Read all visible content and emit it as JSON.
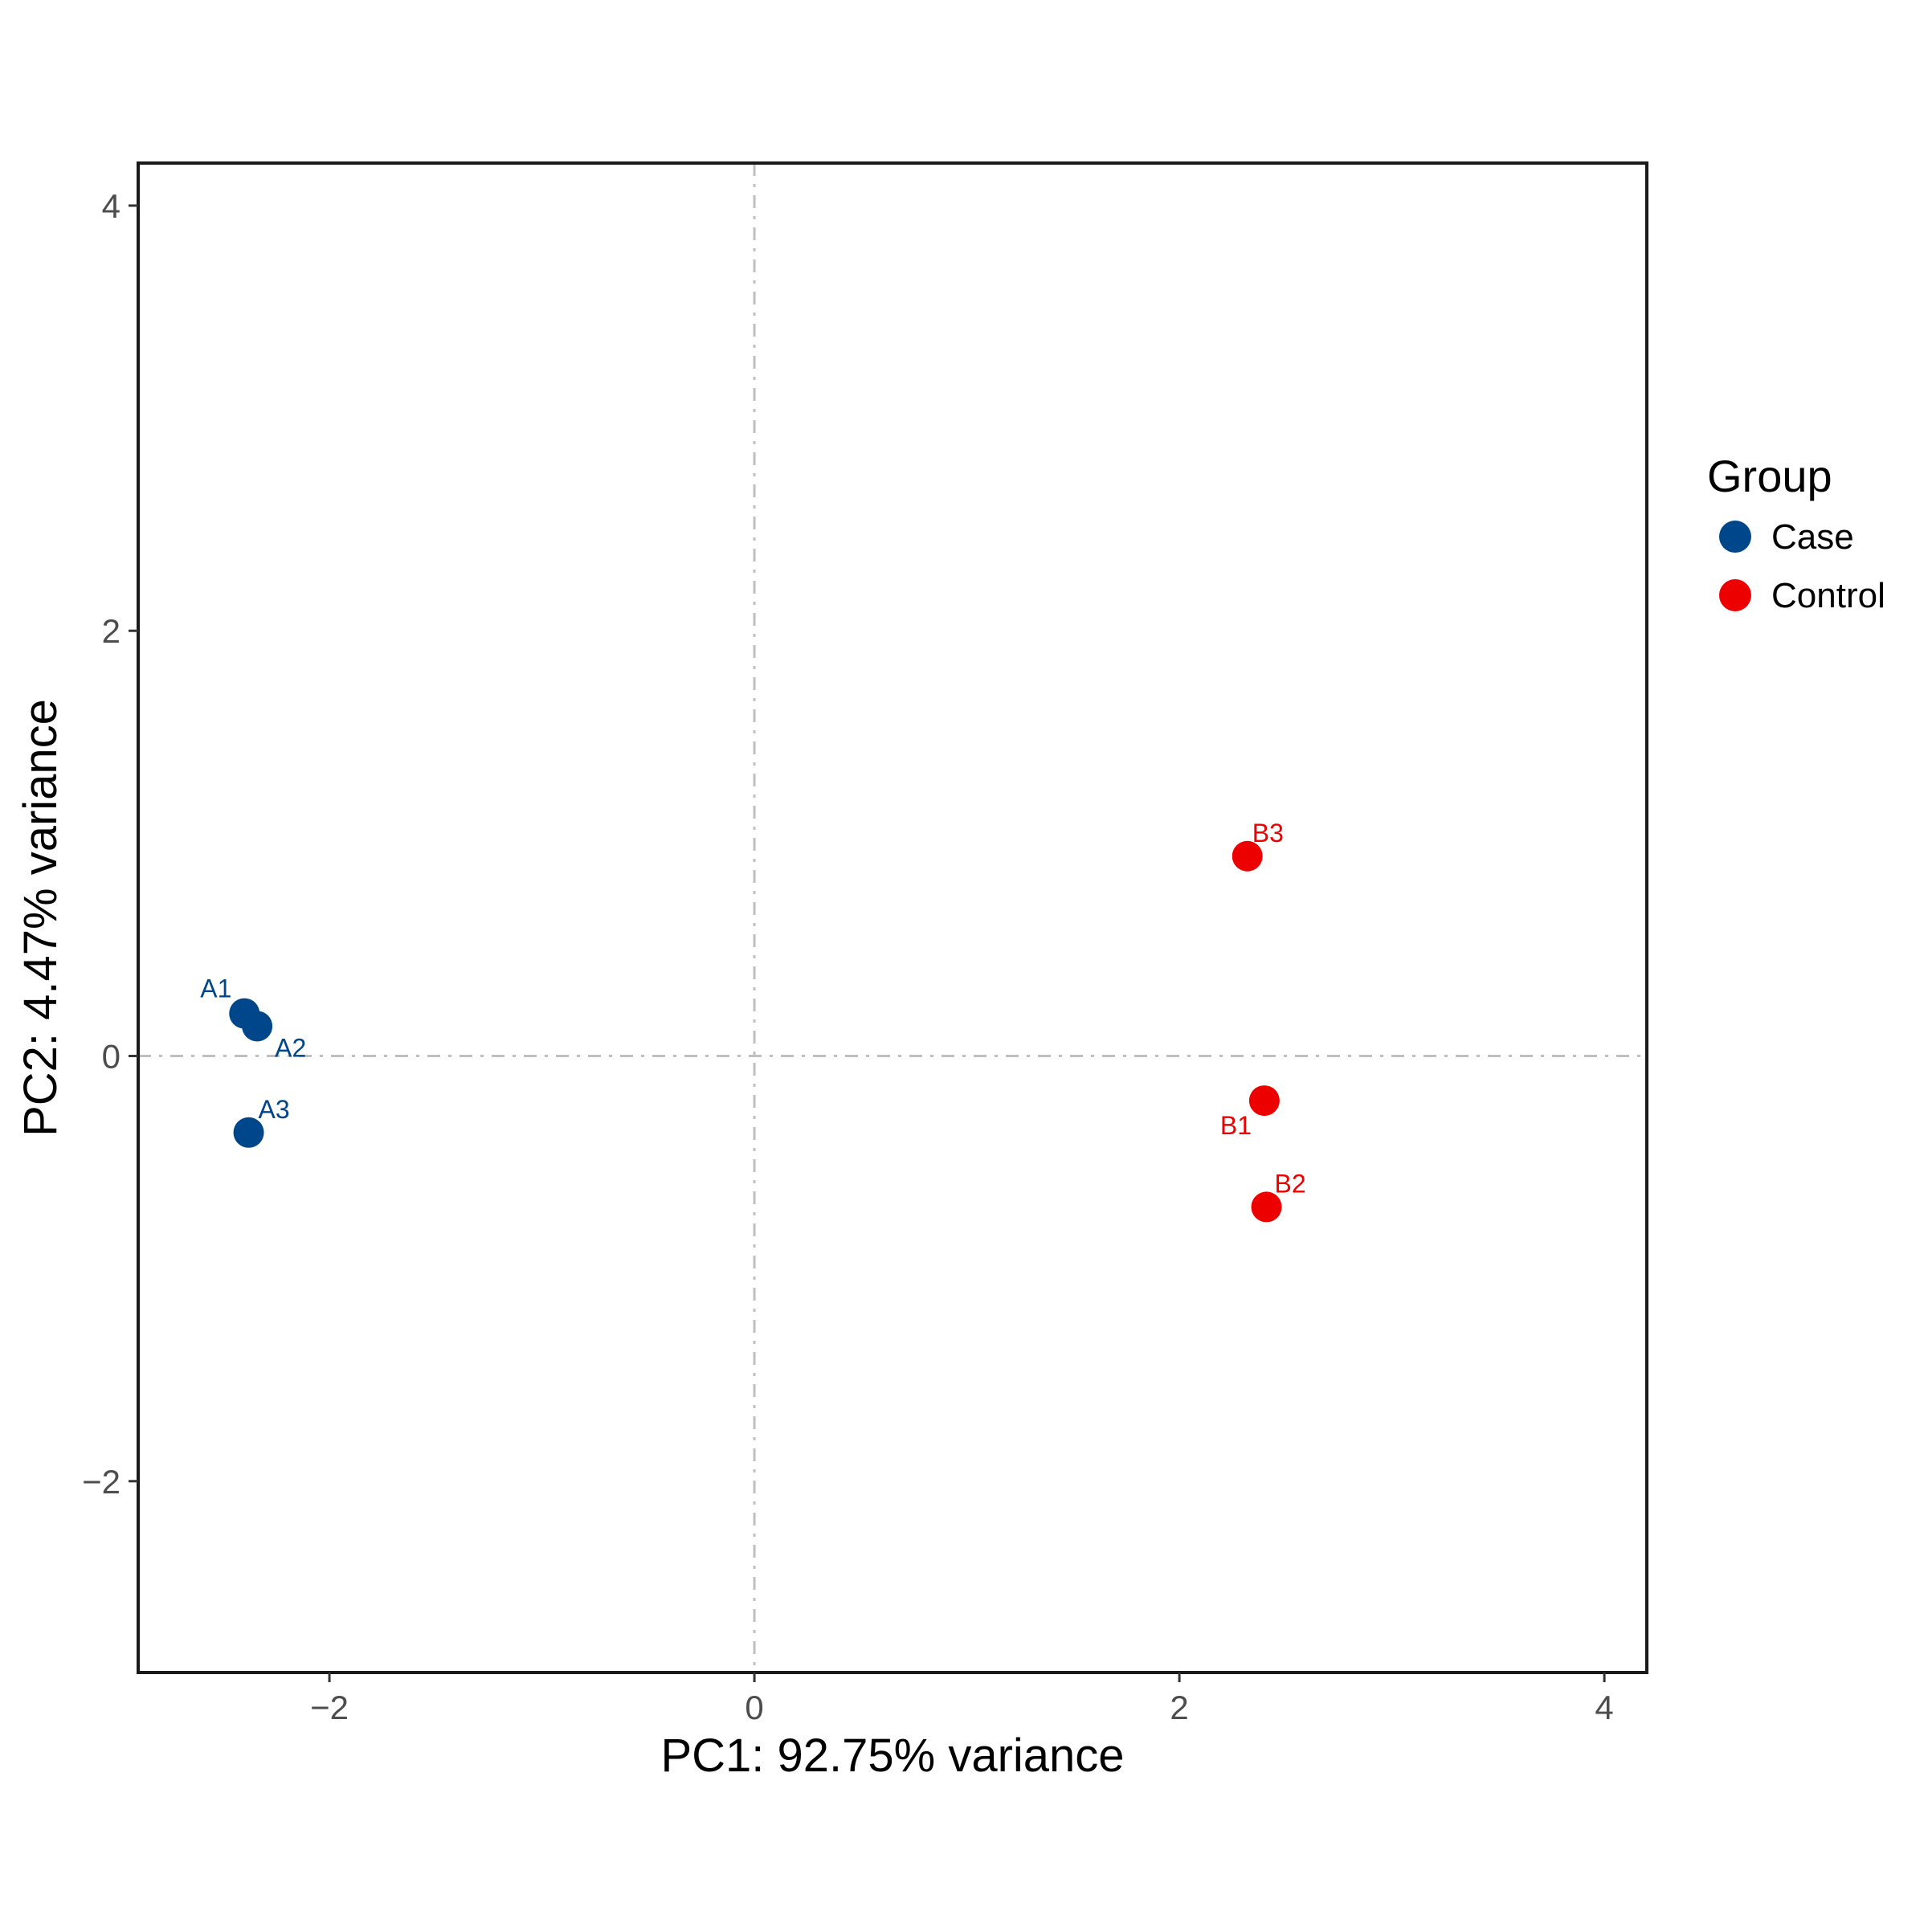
{
  "chart_data": {
    "type": "scatter",
    "xlabel": "PC1: 92.75% variance",
    "ylabel": "PC2: 4.47% variance",
    "xlim": [
      -2.9,
      4.2
    ],
    "ylim": [
      -2.9,
      4.2
    ],
    "x_ticks": [
      -2,
      0,
      2,
      4
    ],
    "y_ticks": [
      -2,
      0,
      2,
      4
    ],
    "x_tick_labels": [
      "−2",
      "0",
      "2",
      "4"
    ],
    "y_tick_labels": [
      "−2",
      "0",
      "2",
      "4"
    ],
    "grid": false,
    "reference_lines": {
      "x": 0,
      "y": 0,
      "style": "dash-dot",
      "color": "#bfbfbf"
    },
    "legend": {
      "title": "Group",
      "position": "right",
      "entries": [
        {
          "name": "Case",
          "color": "#00468b"
        },
        {
          "name": "Control",
          "color": "#ed0000"
        }
      ]
    },
    "series": [
      {
        "name": "Case",
        "color": "#00468b",
        "points": [
          {
            "label": "A1",
            "x": -2.4,
            "y": 0.2
          },
          {
            "label": "A2",
            "x": -2.34,
            "y": 0.14
          },
          {
            "label": "A3",
            "x": -2.38,
            "y": -0.36
          }
        ]
      },
      {
        "name": "Control",
        "color": "#ed0000",
        "points": [
          {
            "label": "B1",
            "x": 2.4,
            "y": -0.21
          },
          {
            "label": "B2",
            "x": 2.41,
            "y": -0.71
          },
          {
            "label": "B3",
            "x": 2.32,
            "y": 0.94
          }
        ]
      }
    ]
  }
}
